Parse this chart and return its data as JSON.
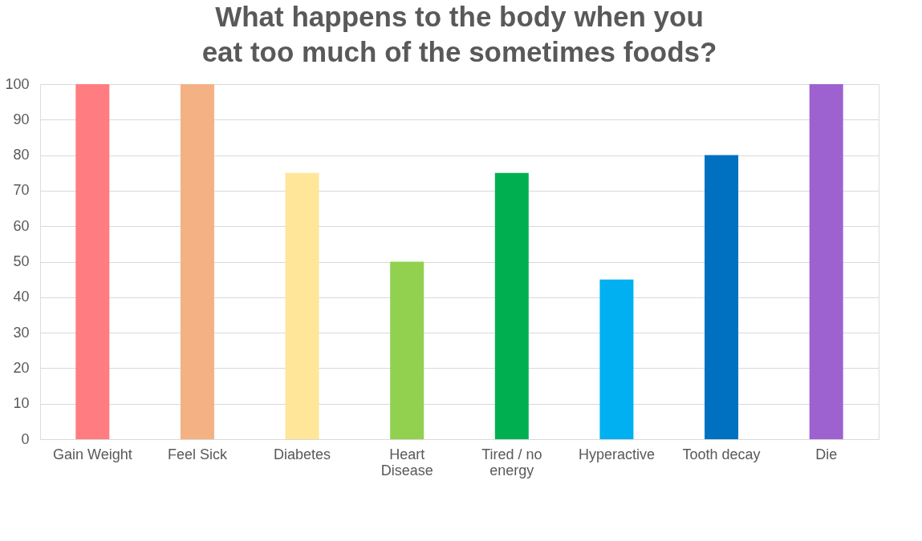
{
  "chart_data": {
    "type": "bar",
    "title": "What happens to the body when you eat too much of the sometimes foods?",
    "categories": [
      "Gain Weight",
      "Feel Sick",
      "Diabetes",
      "Heart Disease",
      "Tired / no energy",
      "Hyperactive",
      "Tooth decay",
      "Die"
    ],
    "values": [
      100,
      100,
      75,
      50,
      75,
      45,
      80,
      100
    ],
    "colors": [
      "#ff7c80",
      "#f4b183",
      "#ffe699",
      "#92d050",
      "#00b050",
      "#00b0f0",
      "#0070c0",
      "#9e62d0"
    ],
    "ylim": [
      0,
      100
    ],
    "yticks": [
      0,
      10,
      20,
      30,
      40,
      50,
      60,
      70,
      80,
      90,
      100
    ],
    "grid": "y"
  }
}
